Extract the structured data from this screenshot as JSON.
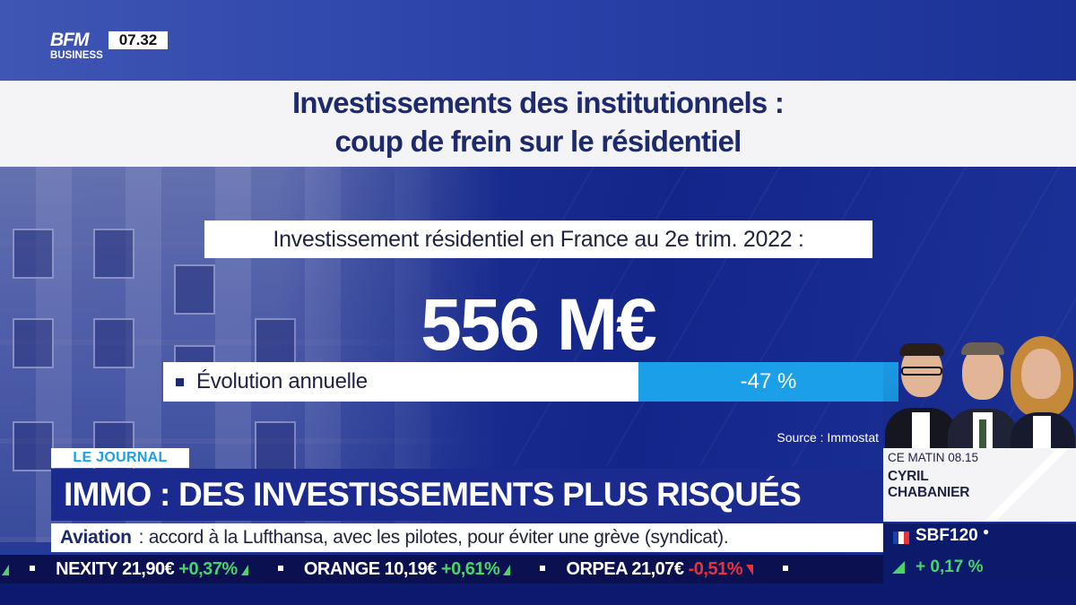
{
  "channel": {
    "logo_line1": "BFM",
    "logo_line2": "BUSINESS",
    "clock": "07.32"
  },
  "graphic": {
    "title_line1": "Investissements des institutionnels :",
    "title_line2": "coup de frein sur le résidentiel",
    "subtitle": "Investissement résidentiel en France au 2e trim. 2022 :",
    "big_value": "556 M€",
    "evolution_label": "Évolution annuelle",
    "evolution_value": "-47 %",
    "source": "Source : Immostat"
  },
  "show": {
    "tag": "LE JOURNAL",
    "headline": "IMMO : DES INVESTISSEMENTS PLUS RISQUÉS"
  },
  "next_show": {
    "label": "CE MATIN 08.15",
    "name_first": "CYRIL",
    "name_last": "CHABANIER"
  },
  "news_ticker": {
    "keyword": "Aviation",
    "text": ": accord à la Lufthansa, avec les pilotes, pour éviter une grève (syndicat)."
  },
  "stock_ticker": [
    {
      "name": "NEXITY",
      "price": "21,90€",
      "change": "+0,37%",
      "dir": "up"
    },
    {
      "name": "ORANGE",
      "price": "10,19€",
      "change": "+0,61%",
      "dir": "up"
    },
    {
      "name": "ORPEA",
      "price": "21,07€",
      "change": "-0,51%",
      "dir": "down"
    }
  ],
  "index": {
    "name": "SBF120",
    "change": "+ 0,17 %",
    "direction": "up"
  },
  "colors": {
    "accent_blue": "#1a9fe8",
    "navy": "#1b2a8f",
    "up_green": "#4bd36b",
    "down_red": "#e8323c"
  }
}
